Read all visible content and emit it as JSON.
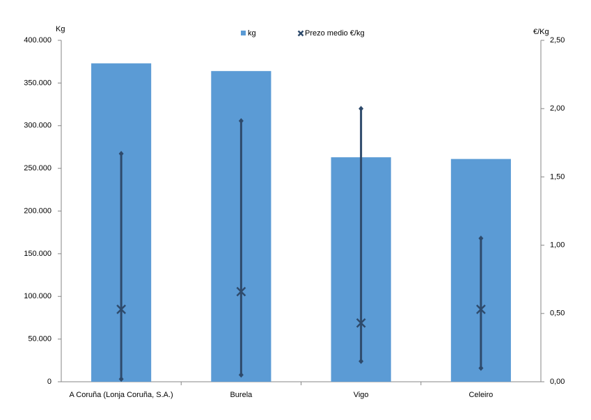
{
  "chart_data": {
    "type": "bar",
    "categories": [
      "A Coruña (Lonja Coruña, S.A.)",
      "Burela",
      "Vigo",
      "Celeiro"
    ],
    "series": [
      {
        "name": "kg",
        "color": "#5b9bd5",
        "values": [
          373000,
          364000,
          263000,
          261000
        ]
      },
      {
        "name": "Prezo medio €/kg",
        "color": "#2e4a6b",
        "axis": "y2",
        "values": [
          0.53,
          0.66,
          0.43,
          0.53
        ],
        "low": [
          0.02,
          0.05,
          0.15,
          0.1
        ],
        "high": [
          1.67,
          1.91,
          2.0,
          1.05
        ]
      }
    ],
    "ylabel": "Kg",
    "y2label": "€/Kg",
    "ylim": [
      0,
      400000
    ],
    "yticks": [
      0,
      {
        "value": 50000,
        "label": "50.000"
      },
      {
        "value": 100000,
        "label": "100.000"
      },
      {
        "value": 150000,
        "label": "150.000"
      },
      {
        "value": 200000,
        "label": "200.000"
      },
      {
        "value": 250000,
        "label": "250.000"
      },
      {
        "value": 300000,
        "label": "300.000"
      },
      {
        "value": 350000,
        "label": "350.000"
      },
      {
        "value": 400000,
        "label": "400.000"
      }
    ],
    "y2lim": [
      0,
      2.5
    ],
    "y2ticks": [
      {
        "value": 0,
        "label": "0,00"
      },
      {
        "value": 0.5,
        "label": "0,50"
      },
      {
        "value": 1,
        "label": "1,00"
      },
      {
        "value": 1.5,
        "label": "1,50"
      },
      {
        "value": 2,
        "label": "2,00"
      },
      {
        "value": 2.5,
        "label": "2,50"
      }
    ],
    "grid": false,
    "legend": "top"
  }
}
